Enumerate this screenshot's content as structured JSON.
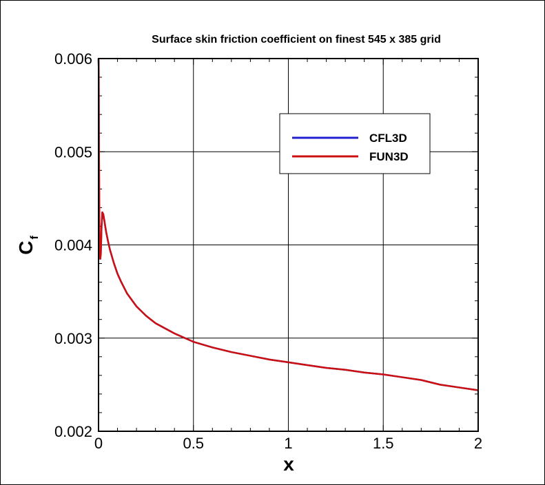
{
  "chart_data": {
    "type": "line",
    "title": "Surface skin friction coefficient on finest 545 x 385 grid",
    "xlabel": "x",
    "ylabel_main": "C",
    "ylabel_sub": "f",
    "xlim": [
      0,
      2
    ],
    "ylim": [
      0.002,
      0.006
    ],
    "x_ticks": [
      "0",
      "0.5",
      "1",
      "1.5",
      "2"
    ],
    "x_tick_values": [
      0,
      0.5,
      1,
      1.5,
      2
    ],
    "y_ticks": [
      "0.002",
      "0.003",
      "0.004",
      "0.005",
      "0.006"
    ],
    "y_tick_values": [
      0.002,
      0.003,
      0.004,
      0.005,
      0.006
    ],
    "grid": true,
    "legend_position": "top-right",
    "series": [
      {
        "name": "CFL3D",
        "color": "#2020d0",
        "x": [
          0.0,
          0.001,
          0.002,
          0.004,
          0.006,
          0.009,
          0.012,
          0.016,
          0.02,
          0.025,
          0.03,
          0.04,
          0.05,
          0.06,
          0.08,
          0.1,
          0.12,
          0.15,
          0.2,
          0.25,
          0.3,
          0.4,
          0.5,
          0.6,
          0.7,
          0.8,
          0.9,
          1.0,
          1.1,
          1.2,
          1.3,
          1.4,
          1.5,
          1.6,
          1.7,
          1.8,
          1.9,
          2.0
        ],
        "y": [
          0.006,
          0.0059,
          0.0052,
          0.0044,
          0.0039,
          0.00385,
          0.0039,
          0.0042,
          0.00435,
          0.00433,
          0.00427,
          0.00414,
          0.00404,
          0.00395,
          0.00381,
          0.00369,
          0.0036,
          0.00348,
          0.00334,
          0.00324,
          0.00316,
          0.00305,
          0.00296,
          0.0029,
          0.00285,
          0.00281,
          0.00277,
          0.00274,
          0.00271,
          0.00268,
          0.00266,
          0.00263,
          0.00261,
          0.00258,
          0.00255,
          0.0025,
          0.00247,
          0.00244
        ]
      },
      {
        "name": "FUN3D",
        "color": "#cc1010",
        "x": [
          0.0,
          0.001,
          0.002,
          0.004,
          0.006,
          0.009,
          0.012,
          0.016,
          0.02,
          0.025,
          0.03,
          0.04,
          0.05,
          0.06,
          0.08,
          0.1,
          0.12,
          0.15,
          0.2,
          0.25,
          0.3,
          0.4,
          0.5,
          0.6,
          0.7,
          0.8,
          0.9,
          1.0,
          1.1,
          1.2,
          1.3,
          1.4,
          1.5,
          1.6,
          1.7,
          1.8,
          1.9,
          2.0
        ],
        "y": [
          0.006,
          0.0059,
          0.0052,
          0.0044,
          0.0039,
          0.00385,
          0.0039,
          0.0042,
          0.00435,
          0.00433,
          0.00427,
          0.00414,
          0.00404,
          0.00395,
          0.00381,
          0.00369,
          0.0036,
          0.00348,
          0.00334,
          0.00324,
          0.00316,
          0.00305,
          0.00296,
          0.0029,
          0.00285,
          0.00281,
          0.00277,
          0.00274,
          0.00271,
          0.00268,
          0.00266,
          0.00263,
          0.00261,
          0.00258,
          0.00255,
          0.0025,
          0.00247,
          0.00244
        ]
      }
    ]
  }
}
